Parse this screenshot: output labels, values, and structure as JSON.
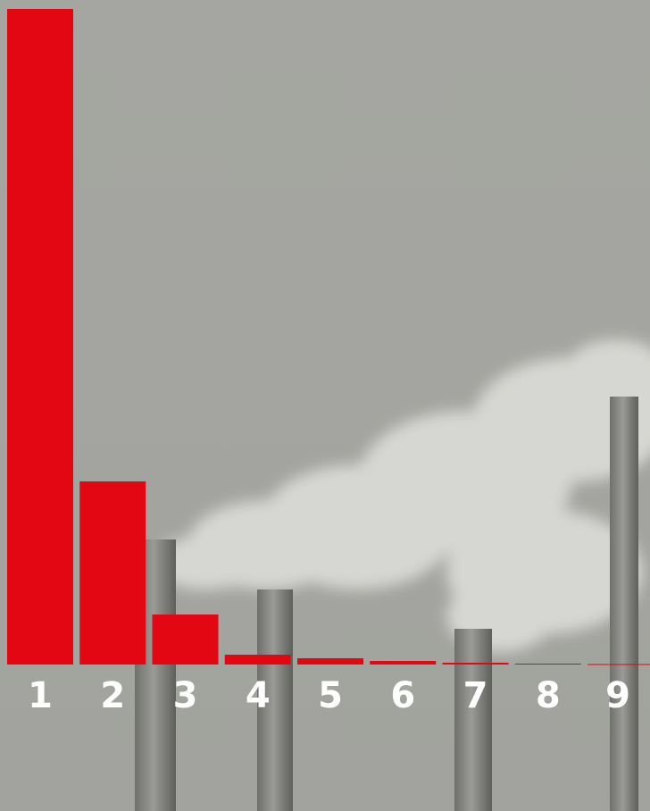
{
  "chart_data": {
    "type": "bar",
    "categories": [
      "1",
      "2",
      "3",
      "4",
      "5",
      "6",
      "7",
      "8",
      "9"
    ],
    "values": [
      734,
      205,
      56,
      11,
      7,
      4,
      2,
      1,
      0.5
    ],
    "color": "#e30613",
    "ylim": [
      0,
      734
    ]
  }
}
